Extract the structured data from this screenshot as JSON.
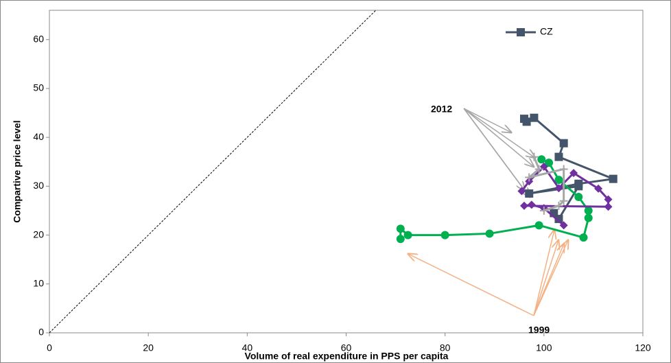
{
  "chart_data": {
    "type": "line",
    "xlabel": "Volume of real expenditure in PPS per capita",
    "ylabel": "Compartive price level",
    "xlim": [
      0,
      120
    ],
    "ylim": [
      0,
      66
    ],
    "xticks": [
      0,
      20,
      40,
      60,
      80,
      100,
      120
    ],
    "yticks": [
      0,
      10,
      20,
      30,
      40,
      50,
      60
    ],
    "legend": "upper right",
    "annotations": [
      "2012",
      "1999"
    ],
    "series": [
      {
        "name": "CZ",
        "color": "#44546a",
        "marker": "square",
        "x": [
          102,
          103,
          107,
          97,
          107,
          114,
          103,
          104,
          98,
          96.5,
          96
        ],
        "values": [
          24.5,
          23.3,
          30,
          28.5,
          30.5,
          31.5,
          36,
          38.8,
          44,
          43.2,
          43.8
        ]
      },
      {
        "color": "#00b050",
        "marker": "circle",
        "x": [
          71,
          71,
          72.5,
          80,
          89,
          99,
          108,
          109,
          109,
          107,
          103,
          101,
          99.5
        ],
        "values": [
          19.2,
          21.3,
          20,
          20,
          20.3,
          22,
          19.5,
          23.5,
          25,
          27.8,
          31.3,
          34.8,
          35.5
        ]
      },
      {
        "color": "#7030a0",
        "marker": "diamond",
        "x": [
          104,
          100,
          97.5,
          96,
          113,
          113,
          111,
          106,
          103,
          100,
          97,
          95.5
        ],
        "values": [
          22,
          25.5,
          26.2,
          26,
          25.8,
          27.3,
          29.5,
          32.7,
          29.6,
          34,
          31,
          29
        ]
      },
      {
        "color": "#a6a6a6",
        "marker": "plus",
        "x": [
          100,
          103,
          104,
          104,
          97,
          99,
          98
        ],
        "values": [
          25,
          26,
          27,
          33.5,
          31.8,
          33.5,
          36
        ]
      }
    ]
  }
}
